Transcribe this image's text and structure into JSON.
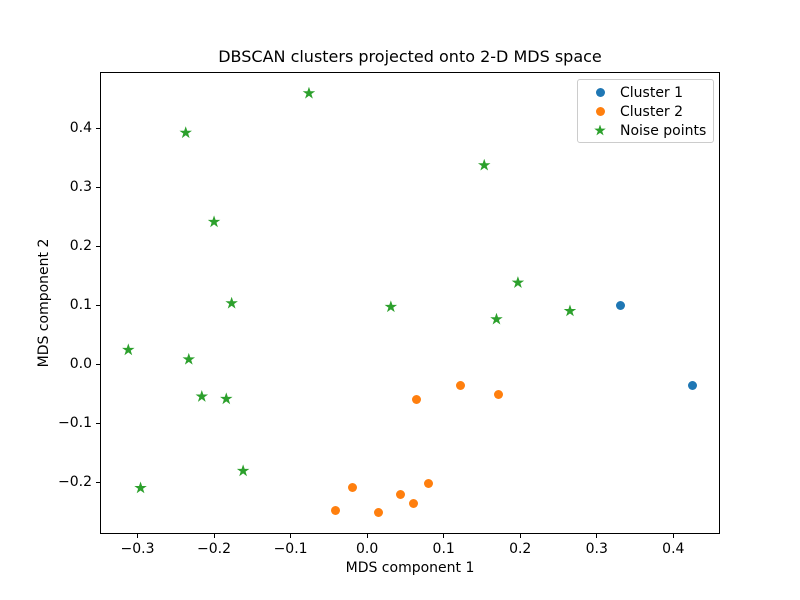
{
  "chart_data": {
    "type": "scatter",
    "title": "DBSCAN clusters projected onto 2-D MDS space",
    "xlabel": "MDS component 1",
    "ylabel": "MDS component 2",
    "xlim": [
      -0.349,
      0.461
    ],
    "ylim": [
      -0.288,
      0.495
    ],
    "xticks": [
      -0.3,
      -0.2,
      -0.1,
      0.0,
      0.1,
      0.2,
      0.3,
      0.4
    ],
    "yticks": [
      -0.2,
      -0.1,
      0.0,
      0.1,
      0.2,
      0.3,
      0.4
    ],
    "grid": false,
    "legend_position": "upper right",
    "series": [
      {
        "name": "Cluster 1",
        "marker": "circle",
        "color": "#1f77b4",
        "points": [
          [
            0.331,
            0.099
          ],
          [
            0.425,
            -0.037
          ]
        ]
      },
      {
        "name": "Cluster 2",
        "marker": "circle",
        "color": "#ff7f0e",
        "points": [
          [
            0.122,
            -0.037
          ],
          [
            0.171,
            -0.051
          ],
          [
            0.065,
            -0.06
          ],
          [
            0.08,
            -0.202
          ],
          [
            -0.019,
            -0.21
          ],
          [
            0.044,
            -0.221
          ],
          [
            0.061,
            -0.237
          ],
          [
            -0.041,
            -0.249
          ],
          [
            0.015,
            -0.252
          ]
        ]
      },
      {
        "name": "Noise points",
        "marker": "star",
        "color": "#2ca02c",
        "points": [
          [
            -0.076,
            0.459
          ],
          [
            -0.237,
            0.392
          ],
          [
            0.153,
            0.337
          ],
          [
            -0.2,
            0.241
          ],
          [
            0.197,
            0.138
          ],
          [
            -0.177,
            0.103
          ],
          [
            0.031,
            0.097
          ],
          [
            0.265,
            0.09
          ],
          [
            0.169,
            0.076
          ],
          [
            -0.312,
            0.024
          ],
          [
            -0.233,
            0.008
          ],
          [
            -0.216,
            -0.055
          ],
          [
            -0.184,
            -0.059
          ],
          [
            -0.162,
            -0.181
          ],
          [
            -0.296,
            -0.21
          ]
        ]
      }
    ]
  }
}
